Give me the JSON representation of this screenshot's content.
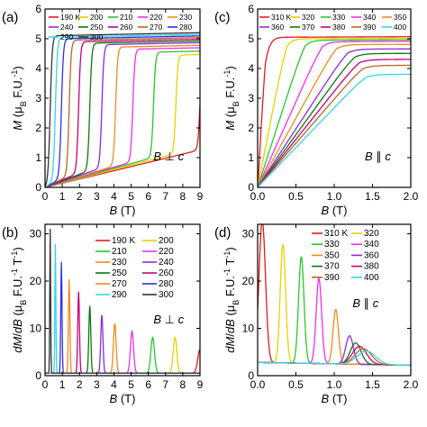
{
  "chart_data": [
    {
      "panel": "(a)",
      "type": "line",
      "xlabel": "B (T)",
      "ylabel": "M (μB F.U.-1)",
      "xlim": [
        0,
        9
      ],
      "ylim": [
        0,
        6
      ],
      "xticks": [
        0,
        1,
        2,
        3,
        4,
        5,
        6,
        7,
        8,
        9
      ],
      "yticks": [
        0,
        1,
        2,
        3,
        4,
        5,
        6
      ],
      "annotation": "B ⊥ c",
      "legend_placement": "top",
      "series": [
        {
          "name": "190 K",
          "color": "#e41a1c",
          "model": "step",
          "Bc": 9.0,
          "Ms": 4.3,
          "slope": 0.14
        },
        {
          "name": "200",
          "color": "#e6d200",
          "model": "step",
          "Bc": 7.6,
          "Ms": 4.45,
          "slope": 0.15
        },
        {
          "name": "210",
          "color": "#28c828",
          "model": "step",
          "Bc": 6.3,
          "Ms": 4.55,
          "slope": 0.16
        },
        {
          "name": "220",
          "color": "#ee30ee",
          "model": "step",
          "Bc": 5.1,
          "Ms": 4.65,
          "slope": 0.17
        },
        {
          "name": "230",
          "color": "#f08a1e",
          "model": "step",
          "Bc": 4.1,
          "Ms": 4.72,
          "slope": 0.18
        },
        {
          "name": "240",
          "color": "#8a2be2",
          "model": "step",
          "Bc": 3.3,
          "Ms": 4.8,
          "slope": 0.2
        },
        {
          "name": "250",
          "color": "#0a7a0a",
          "model": "step",
          "Bc": 2.6,
          "Ms": 4.85,
          "slope": 0.22
        },
        {
          "name": "260",
          "color": "#c8007a",
          "model": "step",
          "Bc": 1.95,
          "Ms": 4.9,
          "slope": 0.25
        },
        {
          "name": "270",
          "color": "#b46a1e",
          "model": "step",
          "Bc": 1.4,
          "Ms": 4.95,
          "slope": 0.28
        },
        {
          "name": "280",
          "color": "#2e2ef0",
          "model": "step",
          "Bc": 0.95,
          "Ms": 5.0,
          "slope": 0.32
        },
        {
          "name": "290",
          "color": "#33d6e6",
          "model": "step",
          "Bc": 0.6,
          "Ms": 5.05,
          "slope": 0.4
        },
        {
          "name": "300",
          "color": "#333333",
          "model": "step",
          "Bc": 0.3,
          "Ms": 5.1,
          "slope": 0.5
        }
      ]
    },
    {
      "panel": "(c)",
      "type": "line",
      "xlabel": "B (T)",
      "ylabel": "M (μB F.U.-1)",
      "xlim": [
        0,
        2.0
      ],
      "ylim": [
        0,
        6
      ],
      "xticks": [
        0.0,
        0.5,
        1.0,
        1.5,
        2.0
      ],
      "yticks": [
        0,
        1,
        2,
        3,
        4,
        5,
        6
      ],
      "annotation": "B ∥ c",
      "legend_placement": "top",
      "series": [
        {
          "name": "310 K",
          "color": "#e41a1c",
          "model": "knee",
          "Bk": 0.1,
          "Ms": 5.05
        },
        {
          "name": "320",
          "color": "#e6d200",
          "model": "knee",
          "Bk": 0.38,
          "Ms": 5.0
        },
        {
          "name": "330",
          "color": "#28c828",
          "model": "knee",
          "Bk": 0.62,
          "Ms": 4.95
        },
        {
          "name": "340",
          "color": "#ee30ee",
          "model": "knee",
          "Bk": 0.85,
          "Ms": 4.9
        },
        {
          "name": "350",
          "color": "#f08a1e",
          "model": "knee",
          "Bk": 1.03,
          "Ms": 4.8
        },
        {
          "name": "360",
          "color": "#8a2be2",
          "model": "knee",
          "Bk": 1.18,
          "Ms": 4.65
        },
        {
          "name": "370",
          "color": "#0a7a0a",
          "model": "knee",
          "Bk": 1.27,
          "Ms": 4.5
        },
        {
          "name": "380",
          "color": "#c8007a",
          "model": "knee",
          "Bk": 1.33,
          "Ms": 4.3
        },
        {
          "name": "390",
          "color": "#b46a1e",
          "model": "knee",
          "Bk": 1.38,
          "Ms": 4.1
        },
        {
          "name": "400",
          "color": "#33d6e6",
          "model": "knee",
          "Bk": 1.42,
          "Ms": 3.8
        }
      ]
    },
    {
      "panel": "(b)",
      "type": "line",
      "xlabel": "B (T)",
      "ylabel": "dM/dB (μB F.U.-1 T-1)",
      "xlim": [
        0,
        9
      ],
      "ylim": [
        0,
        32
      ],
      "xticks": [
        0,
        1,
        2,
        3,
        4,
        5,
        6,
        7,
        8,
        9
      ],
      "yticks": [
        0,
        10,
        20,
        30
      ],
      "annotation": "B ⊥ c",
      "legend_placement": "top-right",
      "series": [
        {
          "name": "190 K",
          "color": "#e41a1c",
          "model": "peak",
          "center": 9.0,
          "height": 5.0,
          "width": 0.18
        },
        {
          "name": "200",
          "color": "#e6d200",
          "model": "peak",
          "center": 7.55,
          "height": 7.5,
          "width": 0.15
        },
        {
          "name": "210",
          "color": "#28c828",
          "model": "peak",
          "center": 6.25,
          "height": 7.5,
          "width": 0.15
        },
        {
          "name": "220",
          "color": "#ee30ee",
          "model": "peak",
          "center": 5.05,
          "height": 8.8,
          "width": 0.13
        },
        {
          "name": "230",
          "color": "#f08a1e",
          "model": "peak",
          "center": 4.05,
          "height": 10.5,
          "width": 0.11
        },
        {
          "name": "240",
          "color": "#8a2be2",
          "model": "peak",
          "center": 3.3,
          "height": 12.3,
          "width": 0.09
        },
        {
          "name": "250",
          "color": "#0a7a0a",
          "model": "peak",
          "center": 2.6,
          "height": 14.2,
          "width": 0.08
        },
        {
          "name": "260",
          "color": "#c8007a",
          "model": "peak",
          "center": 1.95,
          "height": 17.2,
          "width": 0.07
        },
        {
          "name": "270",
          "color": "#f08a1e",
          "model": "peak",
          "center": 1.4,
          "height": 19.8,
          "width": 0.06
        },
        {
          "name": "280",
          "color": "#2e2ef0",
          "model": "peak",
          "center": 0.95,
          "height": 23.5,
          "width": 0.05
        },
        {
          "name": "290",
          "color": "#33d6e6",
          "model": "peak",
          "center": 0.6,
          "height": 27.3,
          "width": 0.04
        },
        {
          "name": "300",
          "color": "#333333",
          "model": "peak",
          "center": 0.3,
          "height": 30.5,
          "width": 0.035
        }
      ]
    },
    {
      "panel": "(d)",
      "type": "line",
      "xlabel": "B (T)",
      "ylabel": "dM/dB (μB F.U.-1 T-1)",
      "xlim": [
        0,
        2.0
      ],
      "ylim": [
        0,
        32
      ],
      "xticks": [
        0.0,
        0.5,
        1.0,
        1.5,
        2.0
      ],
      "yticks": [
        0,
        10,
        20,
        30
      ],
      "annotation": "B ∥ c",
      "legend_placement": "top-right",
      "series": [
        {
          "name": "310 K",
          "color": "#e41a1c",
          "model": "peak",
          "center": 0.06,
          "height": 30.0,
          "width": 0.06
        },
        {
          "name": "320",
          "color": "#e6d200",
          "model": "peak",
          "center": 0.33,
          "height": 25.0,
          "width": 0.05
        },
        {
          "name": "330",
          "color": "#28c828",
          "model": "peak",
          "center": 0.57,
          "height": 22.5,
          "width": 0.05
        },
        {
          "name": "340",
          "color": "#ee30ee",
          "model": "peak",
          "center": 0.8,
          "height": 18.0,
          "width": 0.05
        },
        {
          "name": "350",
          "color": "#f08a1e",
          "model": "peak",
          "center": 1.02,
          "height": 11.5,
          "width": 0.05
        },
        {
          "name": "360",
          "color": "#8a2be2",
          "model": "peak",
          "center": 1.2,
          "height": 6.0,
          "width": 0.07
        },
        {
          "name": "370",
          "color": "#0a7a0a",
          "model": "peak",
          "center": 1.28,
          "height": 4.5,
          "width": 0.1
        },
        {
          "name": "380",
          "color": "#c8007a",
          "model": "peak",
          "center": 1.33,
          "height": 3.8,
          "width": 0.13
        },
        {
          "name": "390",
          "color": "#b46a1e",
          "model": "peak",
          "center": 1.38,
          "height": 3.3,
          "width": 0.15
        },
        {
          "name": "400",
          "color": "#33d6e6",
          "model": "peak",
          "center": 1.42,
          "height": 2.8,
          "width": 0.17
        }
      ]
    }
  ]
}
